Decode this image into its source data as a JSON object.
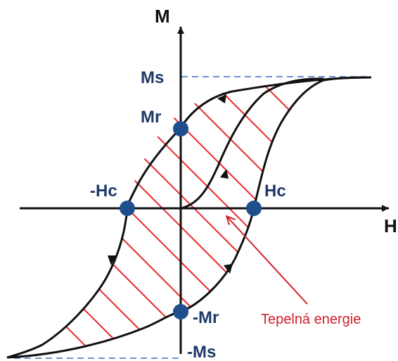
{
  "axes": {
    "vertical_label": "M",
    "horizontal_label": "H"
  },
  "points": {
    "saturation_positive": "Ms",
    "saturation_negative": "-Ms",
    "remanence_positive": "Mr",
    "remanence_negative": "-Mr",
    "coercivity_positive": "Hc",
    "coercivity_negative": "-Hc"
  },
  "annotation": {
    "text": "Tepelná energie"
  },
  "colors": {
    "curve": "#111111",
    "axis": "#111111",
    "points": "#1f4e8c",
    "labels": "#1f3a68",
    "hatch": "#e8262b",
    "dashed": "#3a6fc4",
    "annotation": "#d0202a"
  }
}
